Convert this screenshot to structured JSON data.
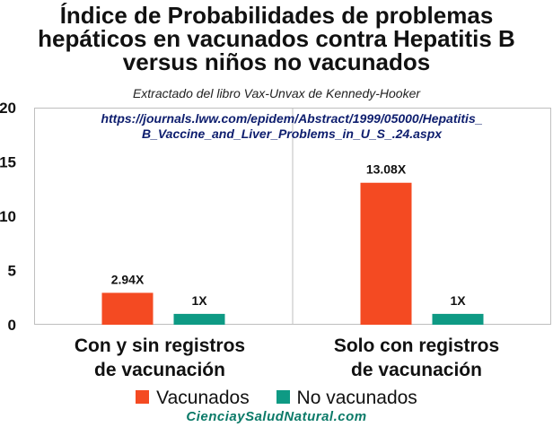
{
  "title_lines": [
    "Índice de Probabilidades de problemas",
    "hepáticos en vacunados contra Hepatitis B",
    "versus niños no vacunados"
  ],
  "subtitle": "Extractado del libro Vax-Unvax de Kennedy-Hooker",
  "url_lines": [
    "https://journals.lww.com/epidem/Abstract/1999/05000/Hepatitis_",
    "B_Vaccine_and_Liver_Problems_in_U_S_.24.aspx"
  ],
  "footer": "CienciaySaludNatural.com",
  "chart_data": {
    "type": "bar",
    "title": "Índice de Probabilidades de problemas hepáticos en vacunados contra Hepatitis B versus niños no vacunados",
    "categories": [
      [
        "Con y sin registros",
        "de vacunación"
      ],
      [
        "Solo con registros",
        "de vacunación"
      ]
    ],
    "series": [
      {
        "name": "Vacunados",
        "color": "#f44a22",
        "values": [
          2.94,
          13.08
        ],
        "labels": [
          "2.94X",
          "13.08X"
        ]
      },
      {
        "name": "No vacunados",
        "color": "#0e9a84",
        "values": [
          1,
          1
        ],
        "labels": [
          "1X",
          "1X"
        ]
      }
    ],
    "ylim": [
      0,
      20
    ],
    "yticks": [
      "0",
      "5",
      "10",
      "15",
      "20"
    ],
    "grid": false,
    "legend": "bottom"
  }
}
